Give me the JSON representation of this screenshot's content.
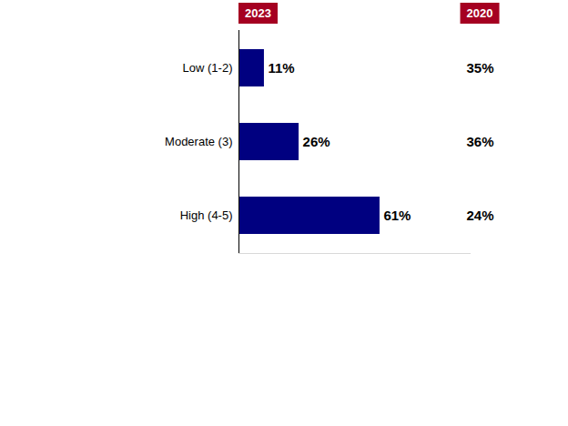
{
  "chart_data": {
    "type": "bar",
    "orientation": "horizontal",
    "categories": [
      "Low (1-2)",
      "Moderate (3)",
      "High (4-5)"
    ],
    "series": [
      {
        "name": "2023",
        "type": "bar",
        "color": "#000080",
        "values": [
          11,
          26,
          61
        ],
        "value_labels": [
          "11%",
          "26%",
          "61%"
        ]
      },
      {
        "name": "2020",
        "type": "text",
        "values": [
          35,
          36,
          24
        ],
        "value_labels": [
          "35%",
          "36%",
          "24%"
        ]
      }
    ],
    "xlim": [
      0,
      100
    ],
    "data_labels": true,
    "tick_labels": "y",
    "grid": false
  }
}
